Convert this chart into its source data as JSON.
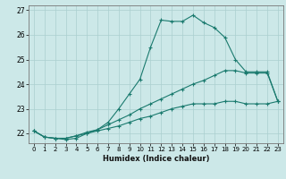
{
  "xlabel": "Humidex (Indice chaleur)",
  "x": [
    0,
    1,
    2,
    3,
    4,
    5,
    6,
    7,
    8,
    9,
    10,
    11,
    12,
    13,
    14,
    15,
    16,
    17,
    18,
    19,
    20,
    21,
    22,
    23
  ],
  "line1": [
    22.1,
    21.85,
    21.8,
    21.75,
    21.8,
    22.0,
    22.15,
    22.45,
    23.0,
    23.6,
    24.2,
    25.5,
    26.6,
    26.55,
    26.55,
    26.8,
    26.5,
    26.3,
    25.9,
    25.0,
    24.5,
    24.5,
    24.5,
    23.3
  ],
  "line2": [
    22.1,
    21.85,
    21.8,
    21.8,
    21.9,
    22.05,
    22.15,
    22.35,
    22.55,
    22.75,
    23.0,
    23.2,
    23.4,
    23.6,
    23.8,
    24.0,
    24.15,
    24.35,
    24.55,
    24.55,
    24.45,
    24.45,
    24.45,
    23.3
  ],
  "line3": [
    22.1,
    21.85,
    21.8,
    21.8,
    21.9,
    22.0,
    22.1,
    22.2,
    22.3,
    22.45,
    22.6,
    22.7,
    22.85,
    23.0,
    23.1,
    23.2,
    23.2,
    23.2,
    23.3,
    23.3,
    23.2,
    23.2,
    23.2,
    23.3
  ],
  "line_color": "#1a7a6e",
  "bg_color": "#cce8e8",
  "grid_color": "#aacfcf",
  "ylim": [
    21.6,
    27.2
  ],
  "yticks": [
    22,
    23,
    24,
    25,
    26,
    27
  ],
  "xticks": [
    0,
    1,
    2,
    3,
    4,
    5,
    6,
    7,
    8,
    9,
    10,
    11,
    12,
    13,
    14,
    15,
    16,
    17,
    18,
    19,
    20,
    21,
    22,
    23
  ],
  "marker": "+",
  "markersize": 3,
  "linewidth": 0.8,
  "tick_fontsize": 5,
  "xlabel_fontsize": 6
}
